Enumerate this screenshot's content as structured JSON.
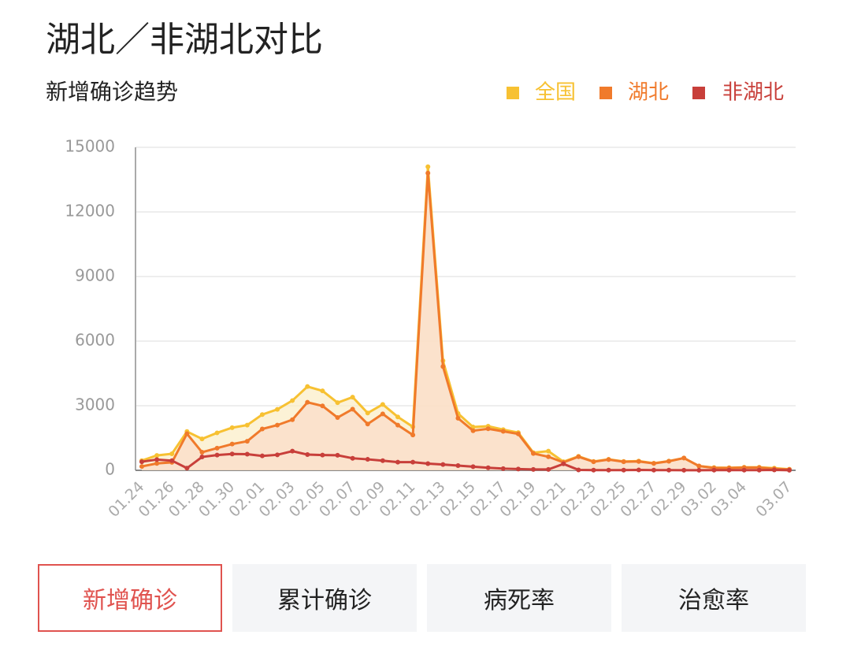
{
  "title": "湖北／非湖北对比",
  "chart_data": {
    "type": "line",
    "title": "新增确诊趋势",
    "categories": [
      "01.24",
      null,
      "01.26",
      null,
      "01.28",
      null,
      "01.30",
      null,
      "02.01",
      null,
      "02.03",
      null,
      "02.05",
      null,
      "02.07",
      null,
      "02.09",
      null,
      "02.11",
      null,
      "02.13",
      null,
      "02.15",
      null,
      "02.17",
      null,
      "02.19",
      null,
      "02.21",
      null,
      "02.23",
      null,
      "02.25",
      null,
      "02.27",
      null,
      "02.29",
      null,
      "03.02",
      null,
      "03.04",
      null,
      null,
      "03.07"
    ],
    "series": [
      {
        "name": "全国",
        "color": "#f7c132",
        "fill": "#fbecc4",
        "values": [
          450,
          690,
          770,
          1800,
          1460,
          1740,
          1980,
          2100,
          2590,
          2830,
          3240,
          3890,
          3690,
          3140,
          3400,
          2660,
          3060,
          2480,
          2020,
          14100,
          5090,
          2640,
          2010,
          2050,
          1890,
          1750,
          820,
          890,
          400,
          650,
          410,
          510,
          410,
          430,
          330,
          430,
          570,
          200,
          130,
          120,
          140,
          140,
          100,
          50
        ]
      },
      {
        "name": "湖北",
        "color": "#f07a2b",
        "fill": "#fbdcc8",
        "values": [
          180,
          320,
          370,
          1700,
          840,
          1030,
          1220,
          1350,
          1920,
          2100,
          2350,
          3160,
          2990,
          2450,
          2840,
          2150,
          2620,
          2100,
          1640,
          13800,
          4820,
          2420,
          1840,
          1930,
          1810,
          1690,
          780,
          630,
          370,
          630,
          400,
          500,
          400,
          410,
          320,
          420,
          570,
          200,
          110,
          110,
          130,
          130,
          70,
          40
        ]
      },
      {
        "name": "非湖北",
        "color": "#c83f3a",
        "fill": null,
        "values": [
          400,
          500,
          450,
          100,
          620,
          710,
          760,
          750,
          670,
          720,
          890,
          730,
          710,
          700,
          560,
          510,
          450,
          380,
          380,
          310,
          270,
          220,
          170,
          120,
          80,
          60,
          40,
          40,
          300,
          20,
          10,
          10,
          10,
          20,
          10,
          10,
          5,
          5,
          10,
          10,
          10,
          10,
          20,
          5
        ]
      }
    ],
    "ylim": [
      0,
      15000
    ],
    "yticks": [
      0,
      3000,
      6000,
      9000,
      12000,
      15000
    ],
    "grid": true,
    "legend": "top-right"
  },
  "tabs": {
    "items": [
      "新增确诊",
      "累计确诊",
      "病死率",
      "治愈率"
    ],
    "selected": 0
  }
}
